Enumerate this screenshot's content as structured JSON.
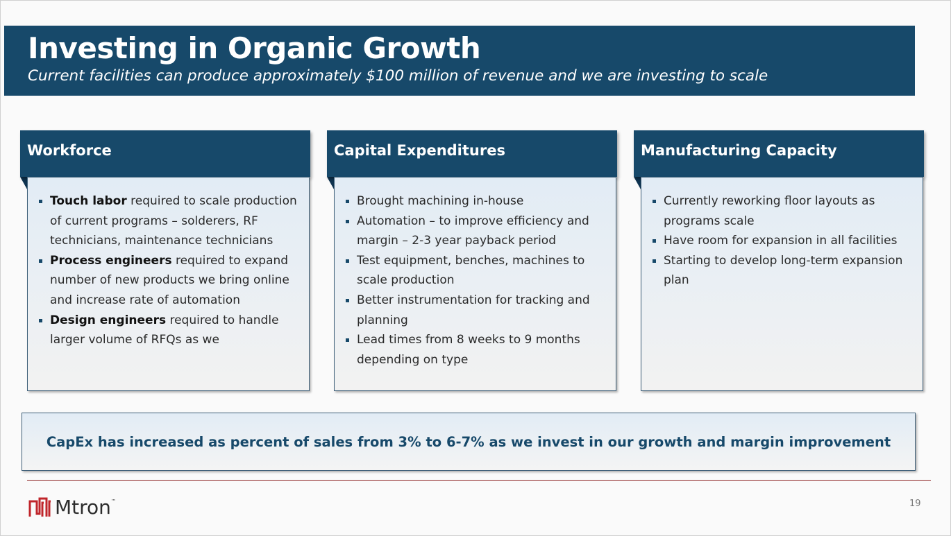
{
  "header": {
    "title": "Investing in Organic Growth",
    "subtitle": "Current facilities can produce approximately $100 million of revenue and we are investing to scale"
  },
  "columns": [
    {
      "title": "Workforce",
      "items": [
        {
          "bold": "Touch labor",
          "text": " required to scale production of current programs – solderers, RF technicians, maintenance technicians"
        },
        {
          "bold": "Process engineers",
          "text": " required to expand number of new products we bring online and increase rate of automation"
        },
        {
          "bold": "Design engineers",
          "text": " required to handle larger volume of RFQs as we"
        }
      ]
    },
    {
      "title": "Capital Expenditures",
      "items": [
        {
          "bold": "",
          "text": "Brought machining in-house"
        },
        {
          "bold": "",
          "text": "Automation – to improve efficiency and margin – 2-3 year payback period"
        },
        {
          "bold": "",
          "text": "Test equipment, benches, machines to scale production"
        },
        {
          "bold": "",
          "text": "Better instrumentation for tracking and planning"
        },
        {
          "bold": "",
          "text": "Lead times from 8 weeks to 9 months depending on type"
        }
      ]
    },
    {
      "title": "Manufacturing Capacity",
      "items": [
        {
          "bold": "",
          "text": "Currently reworking floor layouts as programs scale"
        },
        {
          "bold": "",
          "text": "Have room for expansion in all facilities"
        },
        {
          "bold": "",
          "text": "Starting to develop long-term expansion plan"
        }
      ]
    }
  ],
  "callout": {
    "text": "CapEx has increased as percent of sales from 3% to 6-7% as we invest in our growth and margin improvement"
  },
  "footer": {
    "logo_text": "Mtron",
    "logo_tm": "™",
    "page_number": "19"
  },
  "colors": {
    "brand_navy": "#17496a",
    "accent_red": "#c0252b",
    "rule": "#8a1f1f"
  },
  "icons": {
    "logo_mark": "mtron-logo-icon",
    "bullet": "square-bullet-icon"
  }
}
